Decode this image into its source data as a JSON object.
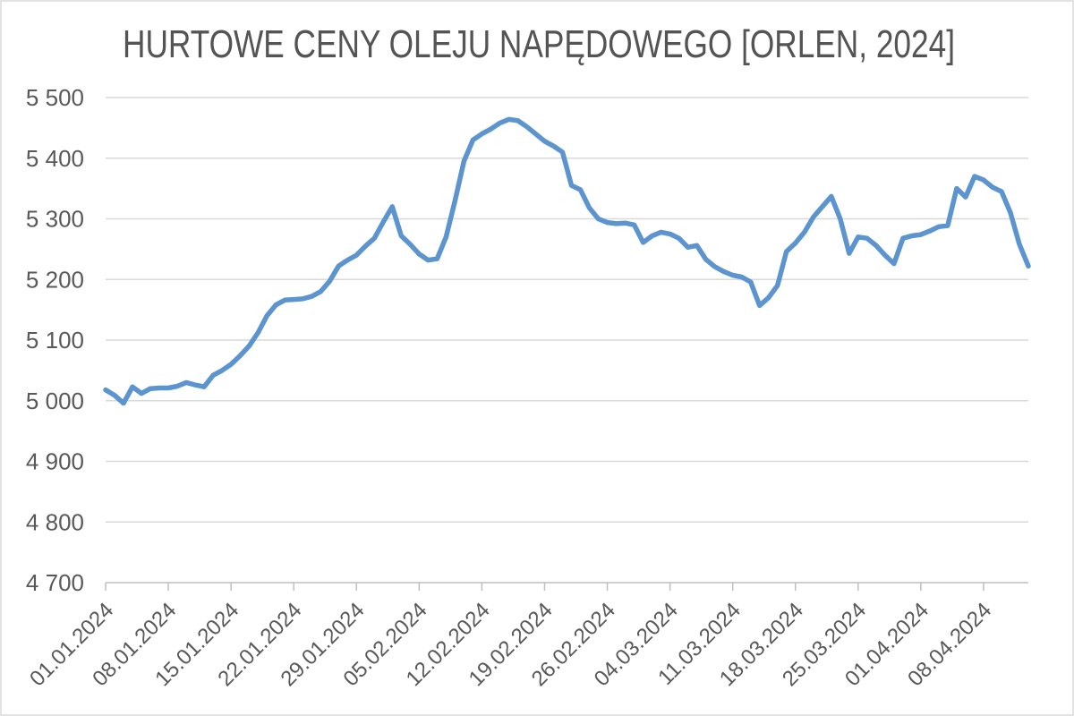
{
  "chart_data": {
    "type": "line",
    "title": "HURTOWE CENY OLEJU NAPĘDOWEGO [ORLEN, 2024]",
    "legend": "none",
    "grid": "horizontal",
    "ylim": [
      4700,
      5500
    ],
    "y_tick_step": 100,
    "y_tick_labels": [
      "5 500",
      "5 400",
      "5 300",
      "5 200",
      "5 100",
      "5 000",
      "4 900",
      "4 800",
      "4 700"
    ],
    "x_tick_labels": [
      "01.01.2024",
      "08.01.2024",
      "15.01.2024",
      "22.01.2024",
      "29.01.2024",
      "05.02.2024",
      "12.02.2024",
      "19.02.2024",
      "26.02.2024",
      "04.03.2024",
      "11.03.2024",
      "18.03.2024",
      "25.03.2024",
      "01.04.2024",
      "08.04.2024"
    ],
    "x_tick_interval_days": 7,
    "x_unit": "day",
    "x_start": "01.01.2024",
    "x_end": "13.04.2024",
    "values": [
      5018,
      5009,
      4996,
      5023,
      5012,
      5020,
      5021,
      5021,
      5024,
      5030,
      5026,
      5023,
      5042,
      5050,
      5060,
      5074,
      5090,
      5112,
      5140,
      5158,
      5166,
      5167,
      5168,
      5172,
      5180,
      5197,
      5222,
      5232,
      5240,
      5255,
      5268,
      5295,
      5320,
      5272,
      5258,
      5242,
      5232,
      5234,
      5270,
      5330,
      5395,
      5430,
      5440,
      5448,
      5458,
      5464,
      5462,
      5452,
      5440,
      5428,
      5420,
      5410,
      5355,
      5348,
      5318,
      5300,
      5294,
      5292,
      5293,
      5290,
      5261,
      5272,
      5278,
      5275,
      5268,
      5253,
      5256,
      5233,
      5221,
      5213,
      5207,
      5204,
      5196,
      5157,
      5170,
      5190,
      5246,
      5260,
      5278,
      5303,
      5320,
      5337,
      5300,
      5243,
      5270,
      5268,
      5256,
      5240,
      5226,
      5268,
      5272,
      5274,
      5280,
      5287,
      5289,
      5350,
      5336,
      5370,
      5364,
      5352,
      5345,
      5310,
      5258,
      5222
    ],
    "colors": {
      "line": "#5b94cf",
      "gridline": "#d9d9d9",
      "axis": "#bfbfbf",
      "tick": "#bfbfbf",
      "label": "#595959",
      "title": "#545454",
      "background": "#ffffff",
      "canvas_border": "#e2e2e2"
    }
  }
}
